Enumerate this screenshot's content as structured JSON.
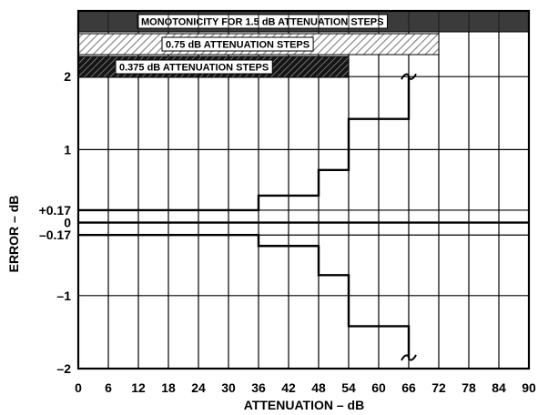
{
  "chart_data": {
    "type": "line",
    "xlabel": "ATTENUATION – dB",
    "ylabel": "ERROR – dB",
    "xlim": [
      0,
      90
    ],
    "ylim": [
      -2,
      2.9
    ],
    "x_ticks": [
      0,
      6,
      12,
      18,
      24,
      30,
      36,
      42,
      48,
      54,
      60,
      66,
      72,
      78,
      84,
      90
    ],
    "y_ticks": [
      {
        "value": 2,
        "label": "2"
      },
      {
        "value": 1,
        "label": "1"
      },
      {
        "value": 0.17,
        "label": "+0.17"
      },
      {
        "value": 0,
        "label": "0"
      },
      {
        "value": -0.17,
        "label": "–0.17"
      },
      {
        "value": -1,
        "label": "–1"
      },
      {
        "value": -2,
        "label": "–2"
      }
    ],
    "grid": true,
    "bands": [
      {
        "label": "MONOTONICITY FOR 1.5 dB ATTENUATION STEPS",
        "x_end": 90,
        "pattern": "solid"
      },
      {
        "label": "0.75 dB ATTENUATION STEPS",
        "x_end": 72,
        "pattern": "light-hatch"
      },
      {
        "label": "0.375 dB ATTENUATION STEPS",
        "x_end": 54,
        "pattern": "dark-hatch"
      }
    ],
    "series": [
      {
        "x": [
          0,
          36,
          36,
          48,
          48,
          54,
          54,
          66,
          66
        ],
        "y": [
          0.17,
          0.17,
          0.37,
          0.37,
          0.72,
          0.72,
          1.42,
          1.42,
          2.0
        ]
      },
      {
        "x": [
          0,
          36,
          36,
          48,
          48,
          54,
          54,
          66,
          66
        ],
        "y": [
          -0.17,
          -0.17,
          -0.32,
          -0.32,
          -0.72,
          -0.72,
          -1.42,
          -1.42,
          -1.85
        ]
      }
    ],
    "break_marks": [
      {
        "x": 66,
        "y": 2.0
      },
      {
        "x": 66,
        "y": -1.85
      }
    ]
  }
}
